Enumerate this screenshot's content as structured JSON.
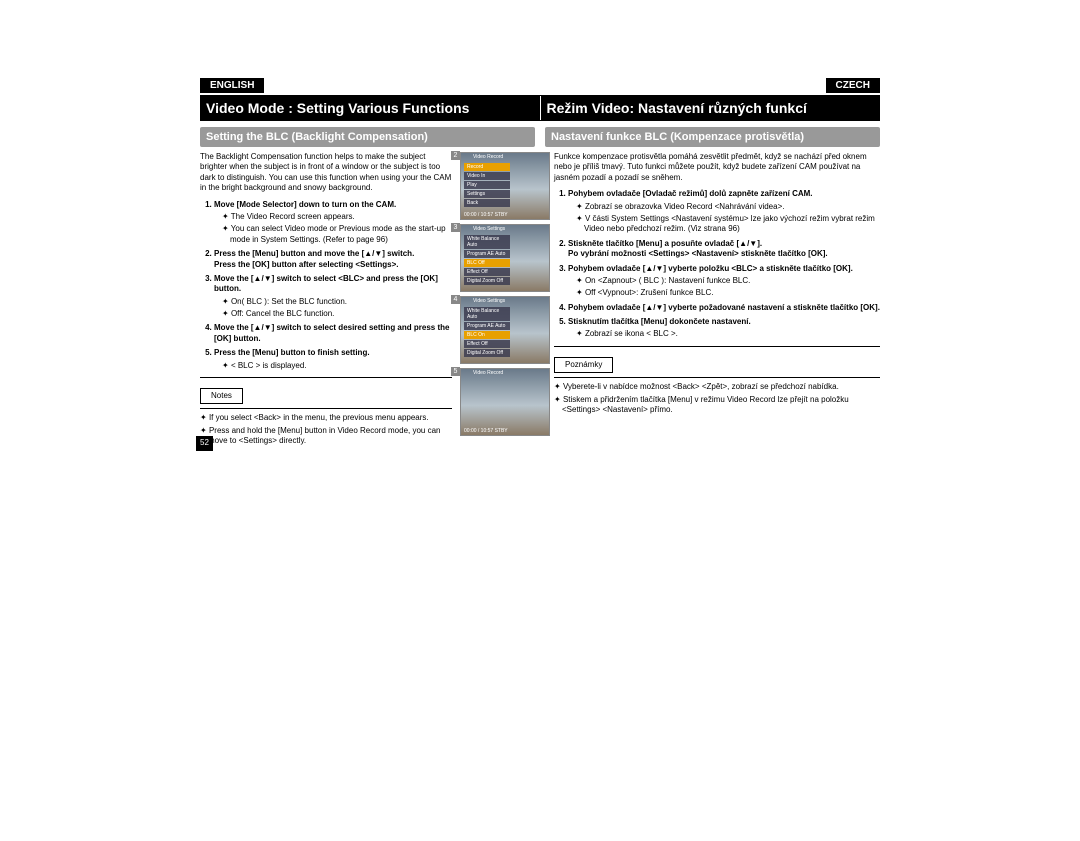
{
  "lang_left": "ENGLISH",
  "lang_right": "CZECH",
  "title_left": "Video Mode : Setting Various Functions",
  "title_right": "Režim Video: Nastavení různých funkcí",
  "subtitle_left": "Setting the BLC (Backlight Compensation)",
  "subtitle_right": "Nastavení funkce BLC (Kompenzace protisvětla)",
  "intro_left": "The Backlight Compensation function helps to make the subject brighter when the subject is in front of a window or the subject is too dark to distinguish. You can use this function when using your the CAM in the bright background and snowy background.",
  "intro_right": "Funkce kompenzace protisvětla pomáhá zesvětlit předmět, když se nachází před oknem nebo je příliš tmavý. Tuto funkci můžete použít, když budete zařízení CAM používat na jasném pozadí a pozadí se sněhem.",
  "left": {
    "s1": "Move [Mode Selector] down to turn on the CAM.",
    "s1a": "The Video Record screen appears.",
    "s1b": "You can select Video mode or Previous mode as the start-up mode in System Settings. (Refer to page 96)",
    "s2": "Press the [Menu] button and move the [▲/▼] switch.",
    "s2b": "Press the [OK] button after selecting <Settings>.",
    "s3": "Move the [▲/▼] switch to select <BLC> and press the [OK] button.",
    "s3a": "On( BLC ): Set the BLC function.",
    "s3b": "Off: Cancel the BLC function.",
    "s4": "Move the [▲/▼] switch to select desired setting and press the [OK] button.",
    "s5": "Press the [Menu] button to finish setting.",
    "s5a": "< BLC > is displayed.",
    "n1": "If you select <Back> in the menu, the previous menu appears.",
    "n2": "Press and hold the [Menu] button in Video Record mode, you can move to <Settings> directly."
  },
  "right": {
    "s1": "Pohybem ovladače [Ovladač režimů] dolů zapněte zařízení CAM.",
    "s1a": "Zobrazí se obrazovka Video Record <Nahrávání videa>.",
    "s1b": "V části System Settings <Nastavení systému> lze jako výchozí režim vybrat režim Video nebo předchozí režim. (Viz strana 96)",
    "s2": "Stiskněte tlačítko [Menu] a posuňte ovladač [▲/▼].",
    "s2b": "Po vybrání možnosti <Settings> <Nastavení> stiskněte tlačítko [OK].",
    "s3": "Pohybem ovladače [▲/▼] vyberte položku <BLC> a stiskněte tlačítko [OK].",
    "s3a": "On <Zapnout> ( BLC ): Nastavení funkce BLC.",
    "s3b": "Off <Vypnout>: Zrušení funkce BLC.",
    "s4": "Pohybem ovladače [▲/▼] vyberte požadované nastavení a stiskněte tlačítko [OK].",
    "s5": "Stisknutím tlačítka [Menu] dokončete nastavení.",
    "s5a": "Zobrazí se ikona < BLC >.",
    "n1": "Vyberete-li v nabídce možnost <Back> <Zpět>, zobrazí se předchozí nabídka.",
    "n2": "Stiskem a přidržením tlačítka [Menu] v režimu Video Record lze přejít na položku <Settings> <Nastavení> přímo."
  },
  "notes_en": "Notes",
  "notes_cz": "Poznámky",
  "page_num": "52",
  "thumbs": {
    "t2": {
      "num": "2",
      "title": "Video Record",
      "items": [
        "Record",
        "Video In",
        "Play",
        "Settings",
        "Back"
      ],
      "bottom": "00:00 / 10:57  STBY"
    },
    "t3": {
      "num": "3",
      "title": "Video Settings",
      "items": [
        "White Balance  Auto",
        "Program AE  Auto",
        "BLC  Off",
        "Effect  Off",
        "Digital Zoom  Off"
      ]
    },
    "t4": {
      "num": "4",
      "title": "Video Settings",
      "items": [
        "White Balance  Auto",
        "Program AE  Auto",
        "BLC  On",
        "Effect  Off",
        "Digital Zoom  Off"
      ]
    },
    "t5": {
      "num": "5",
      "title": "Video Record",
      "bottom": "00:00 / 10:57  STBY"
    }
  }
}
